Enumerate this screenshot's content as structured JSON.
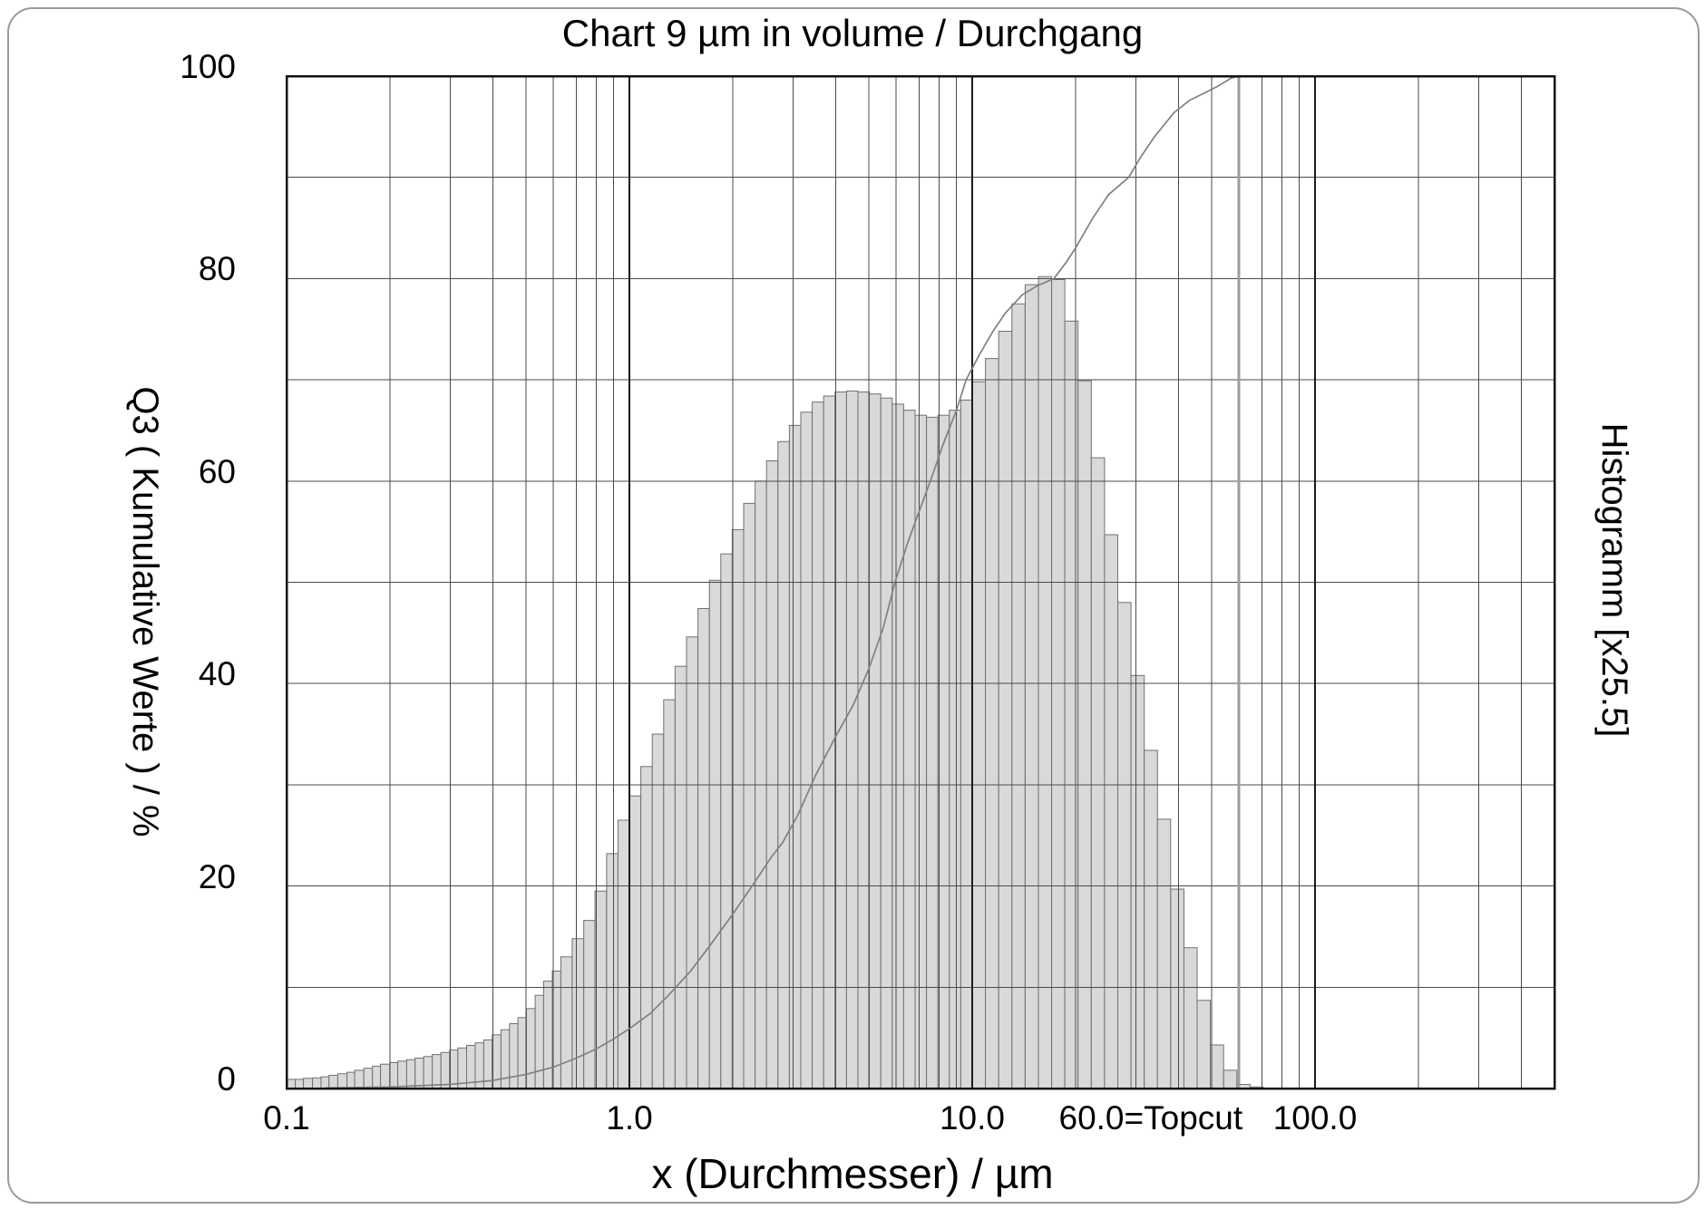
{
  "page": {
    "title": "Chart 9 µm in volume / Durchgang"
  },
  "chart_data": {
    "type": "bar",
    "subtype": "particle-size-distribution-histogram-with-cumulative-curve",
    "title": "Chart 9 µm in volume / Durchgang",
    "xlabel": "x (Durchmesser) / µm",
    "ylabel": "Q3 ( Kumulative Werte ) / %",
    "right_label": "Histogramm [x25.5]",
    "x_scale": "log",
    "x_range_um": [
      0.1,
      500
    ],
    "ylim": [
      0,
      100
    ],
    "grid": {
      "y_ticks": [
        0,
        20,
        40,
        60,
        80,
        100
      ],
      "y_gridline_step": 10,
      "x_major": [
        1,
        10,
        100
      ],
      "x_minor": [
        0.2,
        0.3,
        0.4,
        0.5,
        0.6,
        0.7,
        0.8,
        0.9,
        2,
        3,
        4,
        5,
        6,
        7,
        8,
        9,
        20,
        30,
        40,
        50,
        70,
        80,
        90,
        200,
        300,
        400
      ],
      "topcut_um": 60
    },
    "x_ticks": [
      {
        "um": 0.1,
        "label": "0.1",
        "align": "center"
      },
      {
        "um": 1.0,
        "label": "1.0",
        "align": "center"
      },
      {
        "um": 10.0,
        "label": "10.0",
        "align": "center"
      },
      {
        "um": 60.0,
        "label": "60.0=Topcut",
        "align": "right"
      },
      {
        "um": 100.0,
        "label": "100.0",
        "align": "center"
      }
    ],
    "histogram": {
      "note": "bars as [left_um, right_um, height_pct_displayed]; displayed heights are density scaled by x25.5",
      "bars": [
        [
          0.1,
          0.106,
          0.9
        ],
        [
          0.106,
          0.112,
          0.9
        ],
        [
          0.112,
          0.119,
          1.0
        ],
        [
          0.119,
          0.126,
          1.05
        ],
        [
          0.126,
          0.133,
          1.15
        ],
        [
          0.133,
          0.141,
          1.3
        ],
        [
          0.141,
          0.15,
          1.45
        ],
        [
          0.15,
          0.158,
          1.6
        ],
        [
          0.158,
          0.168,
          1.8
        ],
        [
          0.168,
          0.178,
          2.0
        ],
        [
          0.178,
          0.188,
          2.2
        ],
        [
          0.188,
          0.2,
          2.4
        ],
        [
          0.2,
          0.211,
          2.55
        ],
        [
          0.211,
          0.224,
          2.7
        ],
        [
          0.224,
          0.237,
          2.85
        ],
        [
          0.237,
          0.251,
          3.0
        ],
        [
          0.251,
          0.266,
          3.15
        ],
        [
          0.266,
          0.282,
          3.35
        ],
        [
          0.282,
          0.299,
          3.55
        ],
        [
          0.299,
          0.316,
          3.8
        ],
        [
          0.316,
          0.335,
          4.0
        ],
        [
          0.335,
          0.355,
          4.25
        ],
        [
          0.355,
          0.376,
          4.5
        ],
        [
          0.376,
          0.398,
          4.8
        ],
        [
          0.398,
          0.422,
          5.3
        ],
        [
          0.422,
          0.447,
          5.8
        ],
        [
          0.447,
          0.473,
          6.4
        ],
        [
          0.473,
          0.501,
          7.0
        ],
        [
          0.501,
          0.531,
          7.9
        ],
        [
          0.531,
          0.562,
          9.2
        ],
        [
          0.562,
          0.596,
          10.6
        ],
        [
          0.596,
          0.631,
          11.6
        ],
        [
          0.631,
          0.681,
          13.0
        ],
        [
          0.681,
          0.736,
          14.8
        ],
        [
          0.736,
          0.794,
          16.6
        ],
        [
          0.794,
          0.858,
          19.5
        ],
        [
          0.858,
          0.926,
          23.2
        ],
        [
          0.926,
          1.0,
          26.5
        ],
        [
          1.0,
          1.08,
          28.9
        ],
        [
          1.08,
          1.166,
          31.8
        ],
        [
          1.166,
          1.259,
          35.0
        ],
        [
          1.259,
          1.359,
          38.4
        ],
        [
          1.359,
          1.468,
          41.7
        ],
        [
          1.468,
          1.585,
          44.6
        ],
        [
          1.585,
          1.711,
          47.4
        ],
        [
          1.711,
          1.848,
          50.2
        ],
        [
          1.848,
          1.995,
          52.8
        ],
        [
          1.995,
          2.154,
          55.2
        ],
        [
          2.154,
          2.326,
          57.8
        ],
        [
          2.326,
          2.512,
          60.0
        ],
        [
          2.512,
          2.712,
          62.0
        ],
        [
          2.712,
          2.929,
          63.9
        ],
        [
          2.929,
          3.162,
          65.5
        ],
        [
          3.162,
          3.415,
          66.8
        ],
        [
          3.415,
          3.687,
          67.8
        ],
        [
          3.687,
          3.981,
          68.4
        ],
        [
          3.981,
          4.299,
          68.8
        ],
        [
          4.299,
          4.642,
          68.9
        ],
        [
          4.642,
          5.012,
          68.8
        ],
        [
          5.012,
          5.412,
          68.6
        ],
        [
          5.412,
          5.843,
          68.2
        ],
        [
          5.843,
          6.31,
          67.6
        ],
        [
          6.31,
          6.813,
          67.0
        ],
        [
          6.813,
          7.356,
          66.5
        ],
        [
          7.356,
          7.943,
          66.3
        ],
        [
          7.943,
          8.577,
          66.5
        ],
        [
          8.577,
          9.261,
          67.0
        ],
        [
          9.261,
          10.0,
          68.0
        ],
        [
          10.0,
          10.93,
          69.8
        ],
        [
          10.93,
          11.95,
          72.1
        ],
        [
          11.95,
          13.06,
          74.8
        ],
        [
          13.06,
          14.27,
          77.5
        ],
        [
          14.27,
          15.6,
          79.4
        ],
        [
          15.6,
          17.05,
          80.2
        ],
        [
          17.05,
          18.63,
          79.9
        ],
        [
          18.63,
          20.36,
          75.8
        ],
        [
          20.36,
          22.25,
          69.9
        ],
        [
          22.25,
          24.32,
          62.3
        ],
        [
          24.32,
          26.58,
          54.7
        ],
        [
          26.58,
          29.05,
          48.0
        ],
        [
          29.05,
          31.75,
          40.8
        ],
        [
          31.75,
          34.7,
          33.4
        ],
        [
          34.7,
          37.93,
          26.6
        ],
        [
          37.93,
          41.45,
          19.7
        ],
        [
          41.45,
          45.3,
          13.9
        ],
        [
          45.3,
          49.51,
          8.7
        ],
        [
          49.51,
          54.11,
          4.3
        ],
        [
          54.11,
          59.14,
          1.8
        ],
        [
          59.14,
          64.63,
          0.4
        ],
        [
          64.63,
          70.64,
          0.15
        ]
      ]
    },
    "cumulative": {
      "name": "Q3",
      "points": [
        [
          0.13,
          0.05
        ],
        [
          0.2,
          0.15
        ],
        [
          0.3,
          0.4
        ],
        [
          0.4,
          0.8
        ],
        [
          0.5,
          1.4
        ],
        [
          0.6,
          2.1
        ],
        [
          0.7,
          3.0
        ],
        [
          0.8,
          3.9
        ],
        [
          0.9,
          4.9
        ],
        [
          1.0,
          5.9
        ],
        [
          1.15,
          7.4
        ],
        [
          1.3,
          9.2
        ],
        [
          1.5,
          11.5
        ],
        [
          1.7,
          13.9
        ],
        [
          2.0,
          17.2
        ],
        [
          2.28,
          20.0
        ],
        [
          2.6,
          22.9
        ],
        [
          2.8,
          24.3
        ],
        [
          3.1,
          27.0
        ],
        [
          3.5,
          31.0
        ],
        [
          4.0,
          34.8
        ],
        [
          4.5,
          37.9
        ],
        [
          5.0,
          41.5
        ],
        [
          5.5,
          45.5
        ],
        [
          5.95,
          50.0
        ],
        [
          6.5,
          54.0
        ],
        [
          7.0,
          57.0
        ],
        [
          7.55,
          60.0
        ],
        [
          8.2,
          63.5
        ],
        [
          9.0,
          67.0
        ],
        [
          9.6,
          70.0
        ],
        [
          10.5,
          72.5
        ],
        [
          11.5,
          74.8
        ],
        [
          12.5,
          76.6
        ],
        [
          14.0,
          78.4
        ],
        [
          15.5,
          79.3
        ],
        [
          17.3,
          80.0
        ],
        [
          18.8,
          81.6
        ],
        [
          20.0,
          83.0
        ],
        [
          22.5,
          86.0
        ],
        [
          25.0,
          88.3
        ],
        [
          28.6,
          90.0
        ],
        [
          31.0,
          92.0
        ],
        [
          34.0,
          94.0
        ],
        [
          38.8,
          96.4
        ],
        [
          43.0,
          97.6
        ],
        [
          48.0,
          98.4
        ],
        [
          52.0,
          99.0
        ],
        [
          57.0,
          99.8
        ],
        [
          60.0,
          100.0
        ]
      ]
    }
  },
  "style": {
    "bar_fill": "#d9d9d9",
    "bar_edge": "#707070",
    "grid_color": "#4a4a4a",
    "decade_color": "#1c1c1c",
    "axis_color": "#111111",
    "curve_color": "#808080",
    "topcut_color": "#9c9c9c",
    "frame_color": "#9a9a9a"
  }
}
